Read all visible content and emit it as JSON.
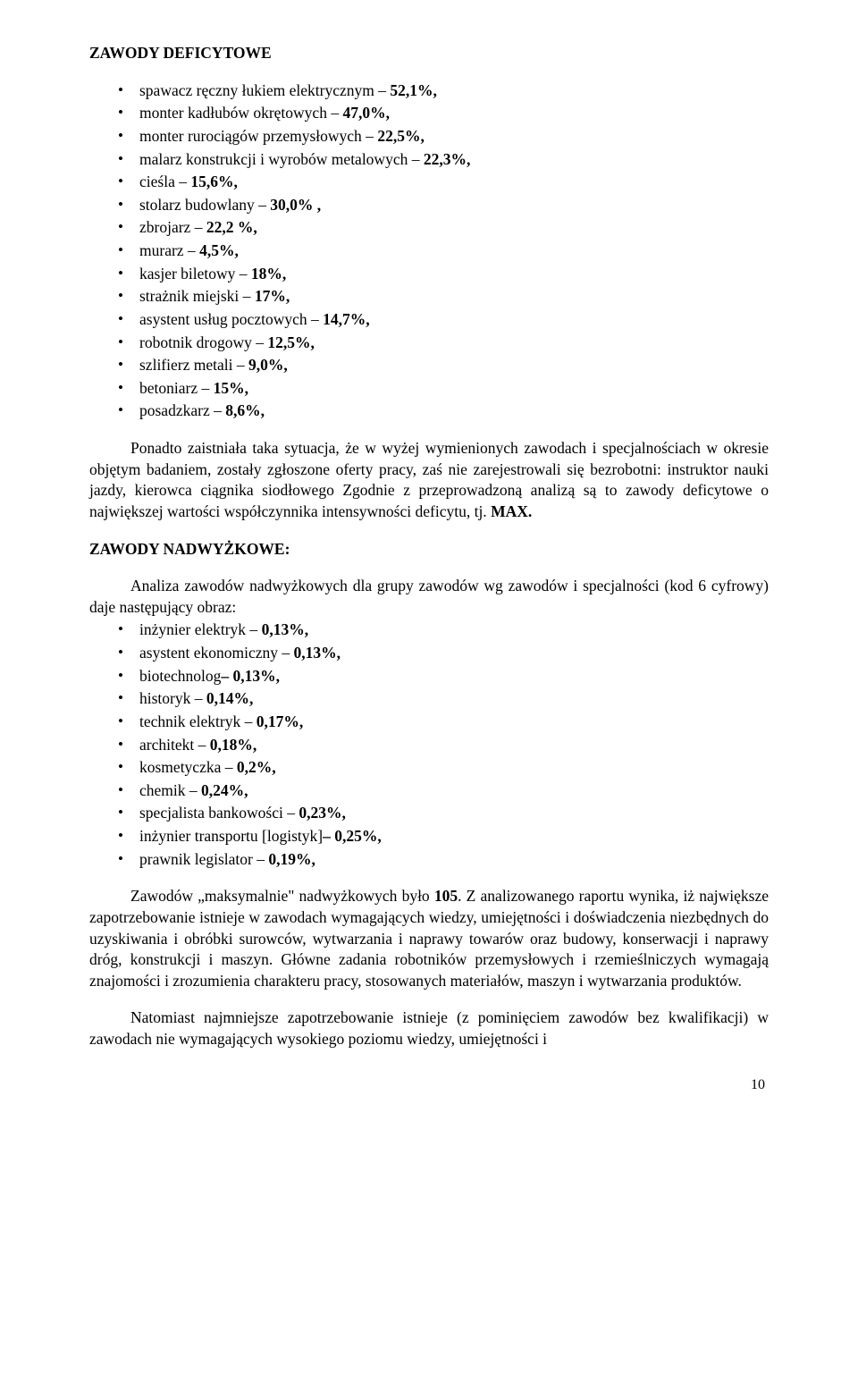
{
  "heading1": "ZAWODY DEFICYTOWE",
  "deficit_items": [
    {
      "text": "spawacz ręczny łukiem elektrycznym ",
      "val": "52,1%,"
    },
    {
      "text": "monter kadłubów okrętowych ",
      "val": "47,0%,"
    },
    {
      "text": "monter rurociągów przemysłowych ",
      "val": "22,5%,"
    },
    {
      "text": "malarz konstrukcji i wyrobów metalowych ",
      "val": "22,3%,"
    },
    {
      "text": "cieśla ",
      "val": "15,6%,"
    },
    {
      "text": "stolarz budowlany ",
      "val": "30,0% ,"
    },
    {
      "text": "zbrojarz ",
      "val": "22,2 %,"
    },
    {
      "text": "murarz ",
      "val": "4,5%,"
    },
    {
      "text": "kasjer biletowy ",
      "val": "18%,"
    },
    {
      "text": "strażnik miejski ",
      "val": "17%,"
    },
    {
      "text": "asystent usług pocztowych ",
      "val": "14,7%,"
    },
    {
      "text": "robotnik drogowy ",
      "val": "12,5%,"
    },
    {
      "text": "szlifierz metali ",
      "val": "9,0%,"
    },
    {
      "text": "betoniarz ",
      "val": "15%,"
    },
    {
      "text": "posadzkarz ",
      "val": "8,6%,"
    }
  ],
  "para1_a": "Ponadto zaistniała taka sytuacja, że w wyżej wymienionych zawodach i specjalnościach w okresie objętym badaniem, zostały zgłoszone oferty pracy, zaś nie zarejestrowali się bezrobotni: instruktor nauki jazdy, kierowca ciągnika siodłowego Zgodnie z przeprowadzoną analizą są to zawody deficytowe o największej wartości współczynnika intensywności deficytu, tj. ",
  "para1_b": "MAX.",
  "heading2": "ZAWODY NADWYŻKOWE:",
  "para2": "Analiza zawodów nadwyżkowych dla grupy zawodów wg zawodów i specjalności (kod 6 cyfrowy) daje następujący obraz:",
  "surplus_items": [
    {
      "text": "inżynier elektryk ",
      "val": "0,13%,"
    },
    {
      "text": "asystent ekonomiczny  ",
      "val": "0,13%,"
    },
    {
      "text": "biotechnolog",
      "val": "– 0,13%,",
      "nodash": true
    },
    {
      "text": "historyk ",
      "val": "0,14%,"
    },
    {
      "text": "technik elektryk ",
      "val": "0,17%,"
    },
    {
      "text": "architekt ",
      "val": "0,18%,"
    },
    {
      "text": "kosmetyczka ",
      "val": "0,2%,"
    },
    {
      "text": "chemik ",
      "val": "0,24%,"
    },
    {
      "text": "specjalista bankowości ",
      "val": "0,23%,"
    },
    {
      "text": "inżynier transportu  [logistyk]",
      "val": "– 0,25%,",
      "nodash": true
    },
    {
      "text": "prawnik legislator ",
      "val": "0,19%,"
    }
  ],
  "para3_a": "Zawodów „maksymalnie\" nadwyżkowych było ",
  "para3_b": "105",
  "para3_c": ". Z analizowanego raportu wynika, iż największe zapotrzebowanie istnieje w zawodach wymagających wiedzy, umiejętności i doświadczenia niezbędnych do uzyskiwania i obróbki surowców, wytwarzania i naprawy towarów oraz budowy, konserwacji i naprawy dróg, konstrukcji i maszyn. Główne zadania robotników przemysłowych i rzemieślniczych wymagają znajomości i zrozumienia charakteru pracy, stosowanych materiałów, maszyn i wytwarzania produktów.",
  "para4": "Natomiast najmniejsze zapotrzebowanie istnieje (z pominięciem zawodów bez kwalifikacji) w zawodach nie wymagających wysokiego poziomu wiedzy, umiejętności i",
  "page_number": "10"
}
